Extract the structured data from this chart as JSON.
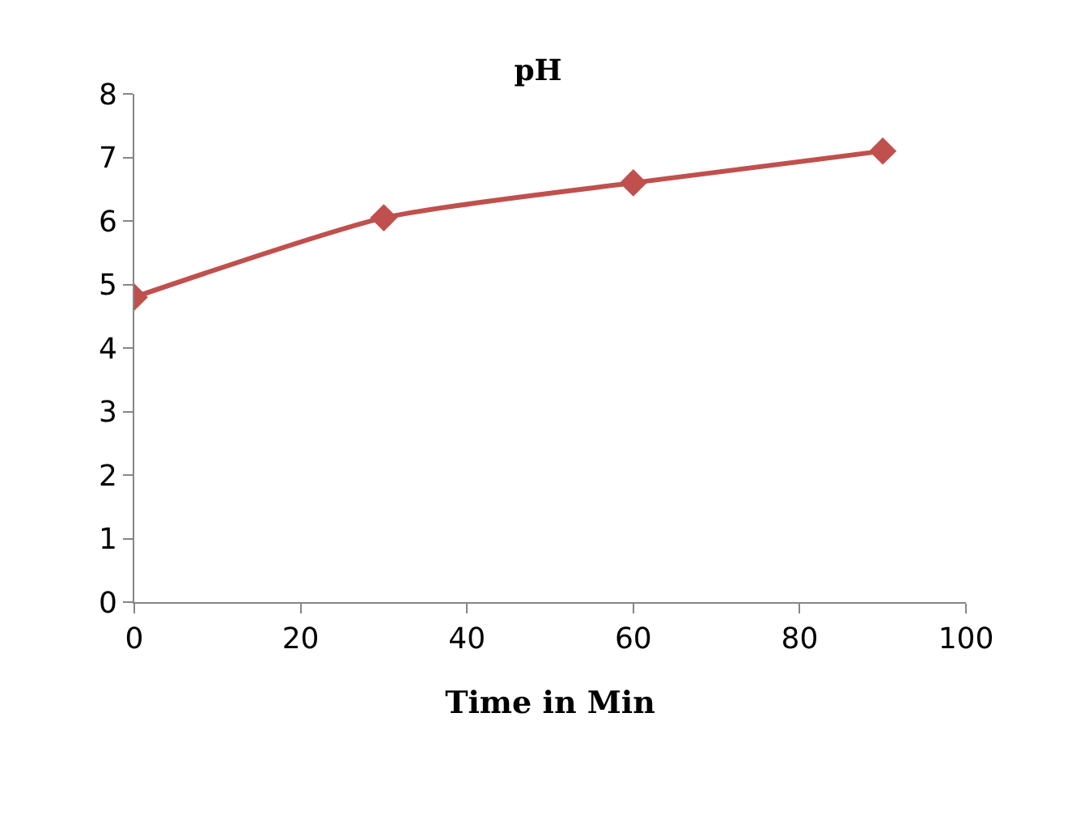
{
  "chart_data": {
    "type": "line",
    "title": "pH",
    "xlabel": "Time in Min",
    "x": [
      0,
      30,
      60,
      90
    ],
    "series": [
      {
        "color": "#c0504d",
        "values": [
          4.8,
          6.05,
          6.6,
          7.1
        ]
      }
    ],
    "xlim": [
      0,
      100
    ],
    "xticks": [
      0,
      20,
      40,
      60,
      80,
      100
    ],
    "ylim": [
      0,
      8
    ],
    "yticks": [
      0,
      1,
      2,
      3,
      4,
      5,
      6,
      7,
      8
    ],
    "legend": false,
    "marker": "diamond",
    "line_style": "solid"
  }
}
